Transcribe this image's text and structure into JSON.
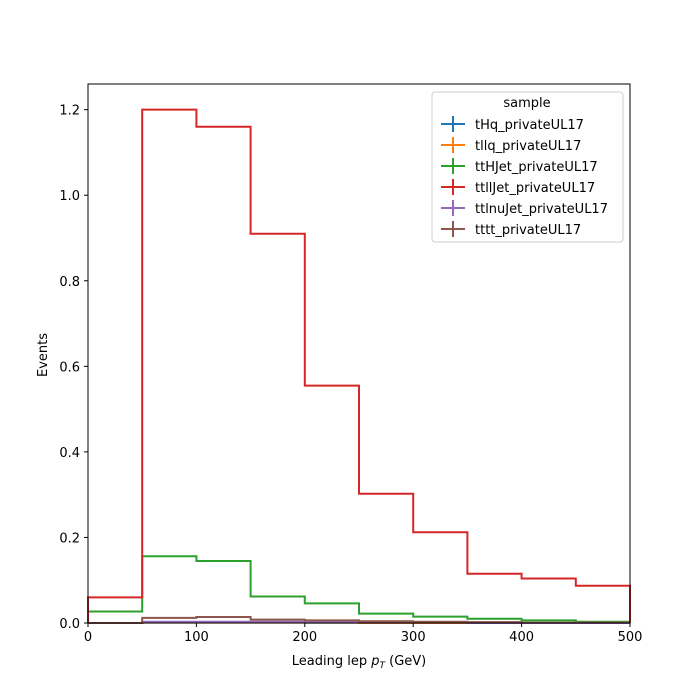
{
  "chart_data": {
    "type": "step",
    "xlabel_main": "Leading lep ",
    "xlabel_var": "p",
    "xlabel_sub": "T",
    "xlabel_unit": " (GeV)",
    "ylabel": "Events",
    "xlim": [
      0,
      500
    ],
    "ylim": [
      0,
      1.26
    ],
    "xticks": [
      0,
      100,
      200,
      300,
      400,
      500
    ],
    "xtick_labels": [
      "0",
      "100",
      "200",
      "300",
      "400",
      "500"
    ],
    "yticks": [
      0,
      0.2,
      0.4,
      0.6,
      0.8,
      1.0,
      1.2
    ],
    "ytick_labels": [
      "0.0",
      "0.2",
      "0.4",
      "0.6",
      "0.8",
      "1.0",
      "1.2"
    ],
    "bin_edges": [
      0,
      50,
      100,
      150,
      200,
      250,
      300,
      350,
      400,
      450,
      500
    ],
    "legend_title": "sample",
    "legend_position": "top-right",
    "series": [
      {
        "name": "tHq_privateUL17",
        "color": "#1f77b4",
        "values": [
          0.0,
          0.002,
          0.002,
          0.002,
          0.001,
          0.001,
          0.001,
          0.0,
          0.0,
          0.0
        ]
      },
      {
        "name": "tllq_privateUL17",
        "color": "#ff7f0e",
        "values": [
          0.0,
          0.001,
          0.001,
          0.001,
          0.001,
          0.0,
          0.0,
          0.0,
          0.0,
          0.0
        ]
      },
      {
        "name": "ttHJet_privateUL17",
        "color": "#2ca02c",
        "values": [
          0.027,
          0.156,
          0.145,
          0.062,
          0.046,
          0.022,
          0.015,
          0.01,
          0.006,
          0.003
        ]
      },
      {
        "name": "ttllJet_privateUL17",
        "color": "#d62728",
        "values": [
          0.06,
          1.2,
          1.16,
          0.91,
          0.555,
          0.302,
          0.212,
          0.115,
          0.104,
          0.087
        ]
      },
      {
        "name": "ttlnuJet_privateUL17",
        "color": "#9467bd",
        "values": [
          0.0,
          0.003,
          0.003,
          0.003,
          0.002,
          0.001,
          0.001,
          0.0,
          0.0,
          0.0
        ]
      },
      {
        "name": "tttt_privateUL17",
        "color": "#8c564b",
        "values": [
          0.0,
          0.012,
          0.014,
          0.008,
          0.006,
          0.004,
          0.003,
          0.002,
          0.001,
          0.001
        ]
      }
    ]
  }
}
